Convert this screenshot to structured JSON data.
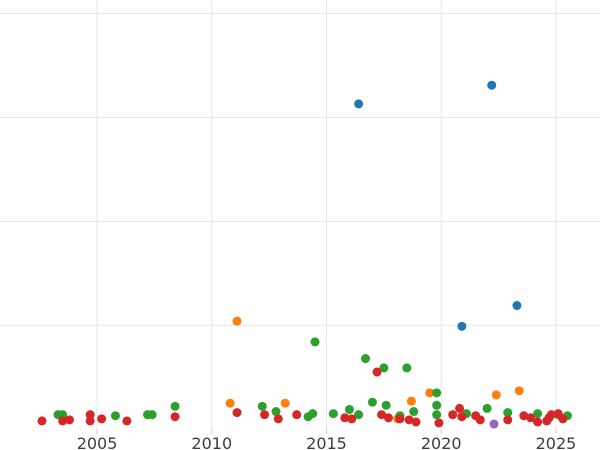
{
  "figure": {
    "background_color": "#ffffff",
    "grid_color": "#e6e6e6",
    "tick_mark_color": "#cccccc",
    "tick_label_color": "#3d3d3d",
    "tick_label_font_px": 16
  },
  "chart_data": {
    "type": "scatter",
    "title": "",
    "xlabel": "",
    "ylabel": "",
    "legend": "none",
    "grid": true,
    "note": "y-axis tick labels are cropped out of view; y values expressed in gridline units (one unit per horizontal gridline), gridlines at 1,2,3,4",
    "xlim": [
      2000.77,
      2026.92
    ],
    "ylim": [
      -0.2,
      4.13
    ],
    "x_ticks": [
      2005,
      2010,
      2015,
      2020,
      2025
    ],
    "x_tick_labels": [
      "2005",
      "2010",
      "2015",
      "2020",
      "2025"
    ],
    "y_gridlines": [
      1,
      2,
      3,
      4
    ],
    "marker_radius_px": 4.5,
    "series": [
      {
        "name": "blue",
        "color": "#1f77b4",
        "points": [
          [
            2016.4,
            3.13
          ],
          [
            2022.2,
            3.31
          ],
          [
            2020.9,
            0.99
          ],
          [
            2023.3,
            1.19
          ]
        ]
      },
      {
        "name": "orange",
        "color": "#ff7f0e",
        "points": [
          [
            2010.8,
            0.25
          ],
          [
            2011.1,
            1.04
          ],
          [
            2013.2,
            0.25
          ],
          [
            2018.1,
            0.1
          ],
          [
            2018.7,
            0.27
          ],
          [
            2019.5,
            0.35
          ],
          [
            2022.4,
            0.33
          ],
          [
            2023.4,
            0.37
          ]
        ]
      },
      {
        "name": "green",
        "color": "#2ca02c",
        "points": [
          [
            2003.3,
            0.14
          ],
          [
            2003.5,
            0.14
          ],
          [
            2005.8,
            0.13
          ],
          [
            2007.2,
            0.14
          ],
          [
            2007.4,
            0.14
          ],
          [
            2008.4,
            0.22
          ],
          [
            2012.2,
            0.22
          ],
          [
            2012.8,
            0.17
          ],
          [
            2014.2,
            0.12
          ],
          [
            2014.4,
            0.15
          ],
          [
            2014.5,
            0.84
          ],
          [
            2015.3,
            0.15
          ],
          [
            2016.0,
            0.19
          ],
          [
            2016.4,
            0.14
          ],
          [
            2016.7,
            0.68
          ],
          [
            2017.0,
            0.26
          ],
          [
            2017.5,
            0.59
          ],
          [
            2017.6,
            0.23
          ],
          [
            2018.2,
            0.13
          ],
          [
            2018.5,
            0.59
          ],
          [
            2018.8,
            0.17
          ],
          [
            2019.8,
            0.35
          ],
          [
            2019.8,
            0.23
          ],
          [
            2019.8,
            0.14
          ],
          [
            2021.1,
            0.15
          ],
          [
            2022.0,
            0.2
          ],
          [
            2022.9,
            0.16
          ],
          [
            2024.2,
            0.15
          ],
          [
            2025.1,
            0.14
          ],
          [
            2025.5,
            0.13
          ]
        ]
      },
      {
        "name": "red",
        "color": "#d62728",
        "points": [
          [
            2002.6,
            0.08
          ],
          [
            2003.5,
            0.08
          ],
          [
            2003.8,
            0.09
          ],
          [
            2004.7,
            0.14
          ],
          [
            2004.7,
            0.08
          ],
          [
            2005.2,
            0.1
          ],
          [
            2006.3,
            0.08
          ],
          [
            2008.4,
            0.12
          ],
          [
            2011.1,
            0.16
          ],
          [
            2012.3,
            0.14
          ],
          [
            2012.9,
            0.1
          ],
          [
            2013.7,
            0.14
          ],
          [
            2015.8,
            0.11
          ],
          [
            2016.1,
            0.1
          ],
          [
            2017.2,
            0.55
          ],
          [
            2017.4,
            0.14
          ],
          [
            2017.7,
            0.11
          ],
          [
            2018.2,
            0.1
          ],
          [
            2018.6,
            0.09
          ],
          [
            2018.9,
            0.07
          ],
          [
            2019.9,
            0.06
          ],
          [
            2020.5,
            0.14
          ],
          [
            2020.8,
            0.2
          ],
          [
            2020.9,
            0.12
          ],
          [
            2021.5,
            0.13
          ],
          [
            2021.7,
            0.09
          ],
          [
            2022.9,
            0.09
          ],
          [
            2023.6,
            0.13
          ],
          [
            2023.9,
            0.11
          ],
          [
            2024.2,
            0.07
          ],
          [
            2024.6,
            0.08
          ],
          [
            2024.7,
            0.11
          ],
          [
            2024.8,
            0.14
          ],
          [
            2025.1,
            0.15
          ],
          [
            2025.3,
            0.1
          ]
        ]
      },
      {
        "name": "purple",
        "color": "#9467bd",
        "points": [
          [
            2022.3,
            0.05
          ]
        ]
      }
    ]
  }
}
